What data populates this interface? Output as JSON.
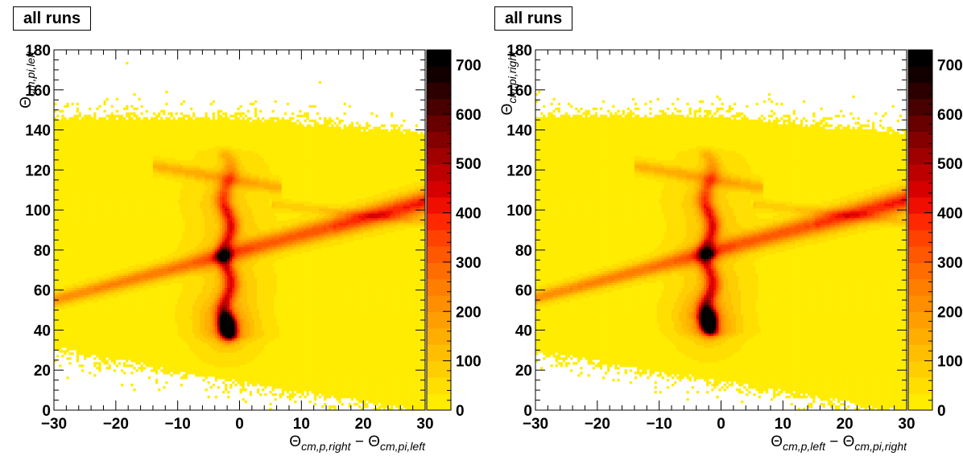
{
  "chart_data": [
    {
      "type": "heatmap",
      "title": "all runs",
      "xlabel": "Θ_cm,p,right − Θ_cm,pi,left",
      "ylabel": "Θ_cm,pi,left",
      "xlabel_parts": {
        "sym": "Θ",
        "sub1": "cm,p,right",
        "op": " − ",
        "sym2": "Θ",
        "sub2": "cm,pi,left"
      },
      "ylabel_parts": {
        "sym": "Θ",
        "sub": "cm,pi,left"
      },
      "xlim": [
        -30,
        30
      ],
      "ylim": [
        0,
        180
      ],
      "x_ticks": [
        -30,
        -20,
        -10,
        0,
        10,
        20,
        30
      ],
      "y_ticks": [
        0,
        20,
        40,
        60,
        80,
        100,
        120,
        140,
        160,
        180
      ],
      "z_range": [
        0,
        730
      ],
      "z_ticks": [
        0,
        100,
        200,
        300,
        400,
        500,
        600,
        700
      ],
      "z_tick_labels": [
        "0",
        "100",
        "200",
        "300",
        "400",
        "500",
        "600",
        "700"
      ],
      "features": {
        "band_top": [
          [
            -30,
            145
          ],
          [
            0,
            145
          ],
          [
            30,
            137
          ]
        ],
        "band_bottom": [
          [
            -30,
            32
          ],
          [
            -10,
            20
          ],
          [
            30,
            0
          ]
        ],
        "diagonal_ridge": {
          "from": [
            -30,
            55
          ],
          "to": [
            30,
            104
          ],
          "peak": 350
        },
        "vertical_ridge": {
          "x": -2,
          "y_from": 38,
          "y_to": 128,
          "peak": 330
        },
        "hotspot": {
          "x": -2,
          "y": 42,
          "peak": 730
        },
        "crossing": {
          "x": -2.5,
          "y": 77,
          "peak": 650
        },
        "upper_arm": {
          "from": [
            -12,
            121
          ],
          "to": [
            5,
            112
          ],
          "peak": 120
        }
      }
    },
    {
      "type": "heatmap",
      "title": "all runs",
      "xlabel": "Θ_cm,p,left − Θ_cm,pi,right",
      "ylabel": "Θ_cm,pi,right",
      "xlabel_parts": {
        "sym": "Θ",
        "sub1": "cm,p,left",
        "op": " − ",
        "sym2": "Θ",
        "sub2": "cm,pi,right"
      },
      "ylabel_parts": {
        "sym": "Θ",
        "sub": "cm,pi,right"
      },
      "xlim": [
        -30,
        30
      ],
      "ylim": [
        0,
        180
      ],
      "x_ticks": [
        -30,
        -20,
        -10,
        0,
        10,
        20,
        30
      ],
      "y_ticks": [
        0,
        20,
        40,
        60,
        80,
        100,
        120,
        140,
        160,
        180
      ],
      "z_range": [
        0,
        730
      ],
      "z_ticks": [
        0,
        100,
        200,
        300,
        400,
        500,
        600,
        700
      ],
      "z_tick_labels": [
        "0",
        "100",
        "200",
        "300",
        "400",
        "500",
        "600",
        "700"
      ],
      "features": {
        "band_top": [
          [
            -30,
            146
          ],
          [
            0,
            146
          ],
          [
            30,
            137
          ]
        ],
        "band_bottom": [
          [
            -30,
            30
          ],
          [
            -10,
            20
          ],
          [
            30,
            0
          ]
        ],
        "diagonal_ridge": {
          "from": [
            -30,
            56
          ],
          "to": [
            30,
            105
          ],
          "peak": 350
        },
        "vertical_ridge": {
          "x": -2,
          "y_from": 40,
          "y_to": 128,
          "peak": 330
        },
        "hotspot": {
          "x": -2,
          "y": 45,
          "peak": 730
        },
        "crossing": {
          "x": -2,
          "y": 78,
          "peak": 650
        },
        "upper_arm": {
          "from": [
            -12,
            121
          ],
          "to": [
            5,
            112
          ],
          "peak": 120
        }
      }
    }
  ]
}
